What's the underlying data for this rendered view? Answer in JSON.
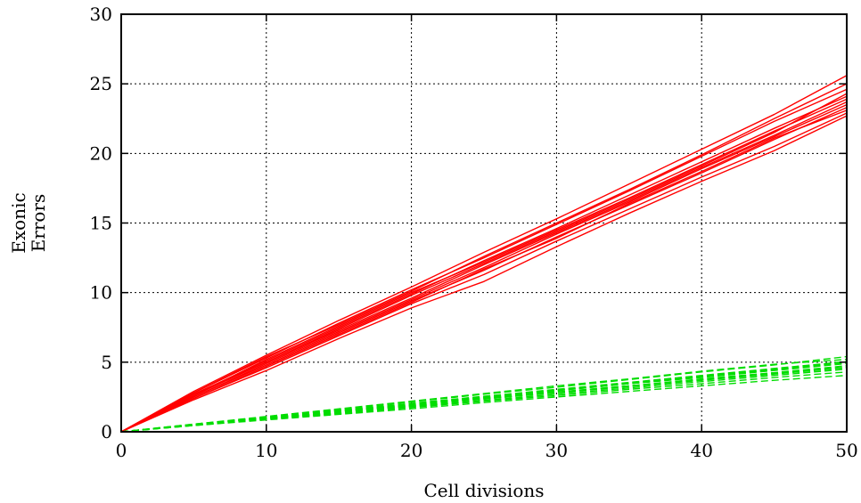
{
  "chart_data": {
    "type": "line",
    "title": "",
    "xlabel": "Cell divisions",
    "ylabel": [
      "Exonic",
      "Errors"
    ],
    "xlim": [
      0,
      50
    ],
    "ylim": [
      0,
      30
    ],
    "x_ticks": [
      0,
      10,
      20,
      30,
      40,
      50
    ],
    "y_ticks": [
      0,
      5,
      10,
      15,
      20,
      25,
      30
    ],
    "x_tick_labels": [
      "0",
      "10",
      "20",
      "30",
      "40",
      "50"
    ],
    "y_tick_labels": [
      "0",
      "5",
      "10",
      "15",
      "20",
      "25",
      "30"
    ],
    "grid": true,
    "legend": "none",
    "series_groups": [
      {
        "color": "#ff0000",
        "style": "solid",
        "count": 12,
        "slope": 0.479
      },
      {
        "color": "#00dd00",
        "style": "dashed",
        "count": 12,
        "slope": 0.095
      }
    ],
    "series": [
      {
        "color": "#ff0000",
        "style": "solid",
        "x": [
          0,
          5,
          10,
          15,
          20,
          25,
          30,
          35,
          40,
          45,
          50
        ],
        "y": [
          0,
          2.6,
          5.0,
          7.3,
          9.6,
          12.0,
          14.3,
          16.6,
          19.0,
          21.3,
          23.7
        ]
      },
      {
        "color": "#ff0000",
        "style": "solid",
        "x": [
          0,
          5,
          10,
          15,
          20,
          25,
          30,
          35,
          40,
          45,
          50
        ],
        "y": [
          0,
          2.5,
          4.8,
          7.1,
          9.4,
          11.6,
          14.0,
          16.3,
          18.6,
          21.0,
          23.3
        ]
      },
      {
        "color": "#ff0000",
        "style": "solid",
        "x": [
          0,
          5,
          10,
          15,
          20,
          25,
          30,
          35,
          40,
          45,
          50
        ],
        "y": [
          0,
          2.8,
          5.3,
          7.8,
          10.2,
          12.5,
          14.9,
          17.3,
          19.8,
          22.3,
          24.6
        ]
      },
      {
        "color": "#ff0000",
        "style": "solid",
        "x": [
          0,
          5,
          10,
          15,
          20,
          25,
          30,
          35,
          40,
          45,
          50
        ],
        "y": [
          0,
          2.4,
          4.6,
          6.9,
          9.2,
          11.3,
          13.7,
          16.0,
          18.3,
          20.5,
          22.9
        ]
      },
      {
        "color": "#ff0000",
        "style": "solid",
        "x": [
          0,
          5,
          10,
          15,
          20,
          25,
          30,
          35,
          40,
          45,
          50
        ],
        "y": [
          0,
          2.7,
          5.1,
          7.5,
          9.9,
          12.3,
          14.6,
          17.0,
          19.4,
          21.8,
          24.1
        ]
      },
      {
        "color": "#ff0000",
        "style": "solid",
        "x": [
          0,
          5,
          10,
          15,
          20,
          25,
          30,
          35,
          40,
          45,
          50
        ],
        "y": [
          0,
          2.9,
          5.5,
          8.0,
          10.4,
          12.9,
          15.3,
          17.8,
          20.3,
          22.8,
          25.6
        ]
      },
      {
        "color": "#ff0000",
        "style": "solid",
        "x": [
          0,
          5,
          10,
          15,
          20,
          25,
          30,
          35,
          40,
          45,
          50
        ],
        "y": [
          0,
          2.5,
          4.9,
          7.2,
          9.5,
          11.8,
          14.2,
          16.5,
          18.9,
          21.2,
          23.5
        ]
      },
      {
        "color": "#ff0000",
        "style": "solid",
        "x": [
          0,
          5,
          10,
          15,
          20,
          25,
          30,
          35,
          40,
          45,
          50
        ],
        "y": [
          0,
          2.3,
          4.4,
          6.7,
          8.9,
          10.8,
          13.3,
          15.7,
          18.0,
          20.2,
          22.7
        ]
      },
      {
        "color": "#ff0000",
        "style": "solid",
        "x": [
          0,
          5,
          10,
          15,
          20,
          25,
          30,
          35,
          40,
          45,
          50
        ],
        "y": [
          0,
          2.6,
          5.2,
          7.6,
          10.0,
          12.2,
          14.5,
          16.8,
          19.2,
          21.6,
          23.9
        ]
      },
      {
        "color": "#ff0000",
        "style": "solid",
        "x": [
          0,
          5,
          10,
          15,
          20,
          25,
          30,
          35,
          40,
          45,
          50
        ],
        "y": [
          0,
          2.7,
          5.0,
          7.4,
          9.8,
          12.1,
          14.4,
          16.7,
          19.1,
          21.5,
          24.3
        ]
      },
      {
        "color": "#ff0000",
        "style": "solid",
        "x": [
          0,
          5,
          10,
          15,
          20,
          25,
          30,
          35,
          40,
          45,
          50
        ],
        "y": [
          0,
          2.4,
          4.7,
          7.0,
          9.3,
          11.7,
          13.9,
          16.4,
          18.7,
          21.1,
          23.1
        ]
      },
      {
        "color": "#ff0000",
        "style": "solid",
        "x": [
          0,
          5,
          10,
          15,
          20,
          25,
          30,
          35,
          40,
          45,
          50
        ],
        "y": [
          0,
          2.8,
          5.4,
          7.7,
          10.1,
          12.6,
          15.0,
          17.4,
          19.9,
          22.5,
          25.0
        ]
      },
      {
        "color": "#00dd00",
        "style": "dashed",
        "x": [
          0,
          5,
          10,
          15,
          20,
          25,
          30,
          35,
          40,
          45,
          50
        ],
        "y": [
          0,
          0.5,
          0.95,
          1.4,
          1.9,
          2.4,
          2.85,
          3.3,
          3.8,
          4.25,
          4.75
        ]
      },
      {
        "color": "#00dd00",
        "style": "dashed",
        "x": [
          0,
          5,
          10,
          15,
          20,
          25,
          30,
          35,
          40,
          45,
          50
        ],
        "y": [
          0,
          0.55,
          1.05,
          1.6,
          2.15,
          2.7,
          3.2,
          3.75,
          4.3,
          4.8,
          5.4
        ]
      },
      {
        "color": "#00dd00",
        "style": "dashed",
        "x": [
          0,
          5,
          10,
          15,
          20,
          25,
          30,
          35,
          40,
          45,
          50
        ],
        "y": [
          0,
          0.45,
          0.9,
          1.3,
          1.75,
          2.2,
          2.6,
          3.05,
          3.45,
          3.9,
          4.3
        ]
      },
      {
        "color": "#00dd00",
        "style": "dashed",
        "x": [
          0,
          5,
          10,
          15,
          20,
          25,
          30,
          35,
          40,
          45,
          50
        ],
        "y": [
          0,
          0.5,
          1.0,
          1.5,
          2.0,
          2.5,
          3.0,
          3.5,
          4.0,
          4.5,
          5.0
        ]
      },
      {
        "color": "#00dd00",
        "style": "dashed",
        "x": [
          0,
          5,
          10,
          15,
          20,
          25,
          30,
          35,
          40,
          45,
          50
        ],
        "y": [
          0,
          0.45,
          0.85,
          1.25,
          1.65,
          2.1,
          2.5,
          2.9,
          3.3,
          3.7,
          4.05
        ]
      },
      {
        "color": "#00dd00",
        "style": "dashed",
        "x": [
          0,
          5,
          10,
          15,
          20,
          25,
          30,
          35,
          40,
          45,
          50
        ],
        "y": [
          0,
          0.5,
          1.0,
          1.45,
          1.95,
          2.45,
          2.95,
          3.45,
          3.9,
          4.4,
          4.9
        ]
      },
      {
        "color": "#00dd00",
        "style": "dashed",
        "x": [
          0,
          5,
          10,
          15,
          20,
          25,
          30,
          35,
          40,
          45,
          50
        ],
        "y": [
          0,
          0.55,
          1.1,
          1.65,
          2.2,
          2.75,
          3.3,
          3.8,
          4.35,
          4.85,
          5.2
        ]
      },
      {
        "color": "#00dd00",
        "style": "dashed",
        "x": [
          0,
          5,
          10,
          15,
          20,
          25,
          30,
          35,
          40,
          45,
          50
        ],
        "y": [
          0,
          0.5,
          0.95,
          1.45,
          1.9,
          2.35,
          2.85,
          3.3,
          3.75,
          4.2,
          4.65
        ]
      },
      {
        "color": "#00dd00",
        "style": "dashed",
        "x": [
          0,
          5,
          10,
          15,
          20,
          25,
          30,
          35,
          40,
          45,
          50
        ],
        "y": [
          0,
          0.5,
          1.0,
          1.5,
          2.0,
          2.45,
          2.95,
          3.45,
          3.95,
          4.45,
          4.95
        ]
      },
      {
        "color": "#00dd00",
        "style": "dashed",
        "x": [
          0,
          5,
          10,
          15,
          20,
          25,
          30,
          35,
          40,
          45,
          50
        ],
        "y": [
          0,
          0.45,
          0.9,
          1.35,
          1.8,
          2.25,
          2.7,
          3.15,
          3.6,
          4.05,
          4.5
        ]
      },
      {
        "color": "#00dd00",
        "style": "dashed",
        "x": [
          0,
          5,
          10,
          15,
          20,
          25,
          30,
          35,
          40,
          45,
          50
        ],
        "y": [
          0,
          0.5,
          1.0,
          1.55,
          2.05,
          2.55,
          3.05,
          3.55,
          4.05,
          4.55,
          5.05
        ]
      },
      {
        "color": "#00dd00",
        "style": "dashed",
        "x": [
          0,
          5,
          10,
          15,
          20,
          25,
          30,
          35,
          40,
          45,
          50
        ],
        "y": [
          0,
          0.5,
          0.95,
          1.4,
          1.85,
          2.35,
          2.8,
          3.25,
          3.7,
          4.15,
          4.6
        ]
      }
    ]
  }
}
